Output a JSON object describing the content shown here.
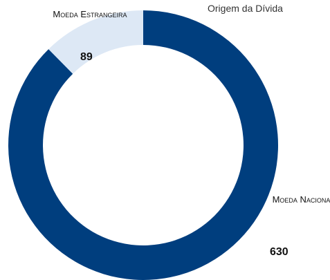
{
  "chart_data": {
    "type": "donut",
    "title": "Origem da Dívida",
    "categories": [
      "Moeda Nacional",
      "Moeda Estrangeira"
    ],
    "values": [
      630,
      89
    ],
    "colors": [
      "#003e7e",
      "#dde8f5"
    ]
  }
}
